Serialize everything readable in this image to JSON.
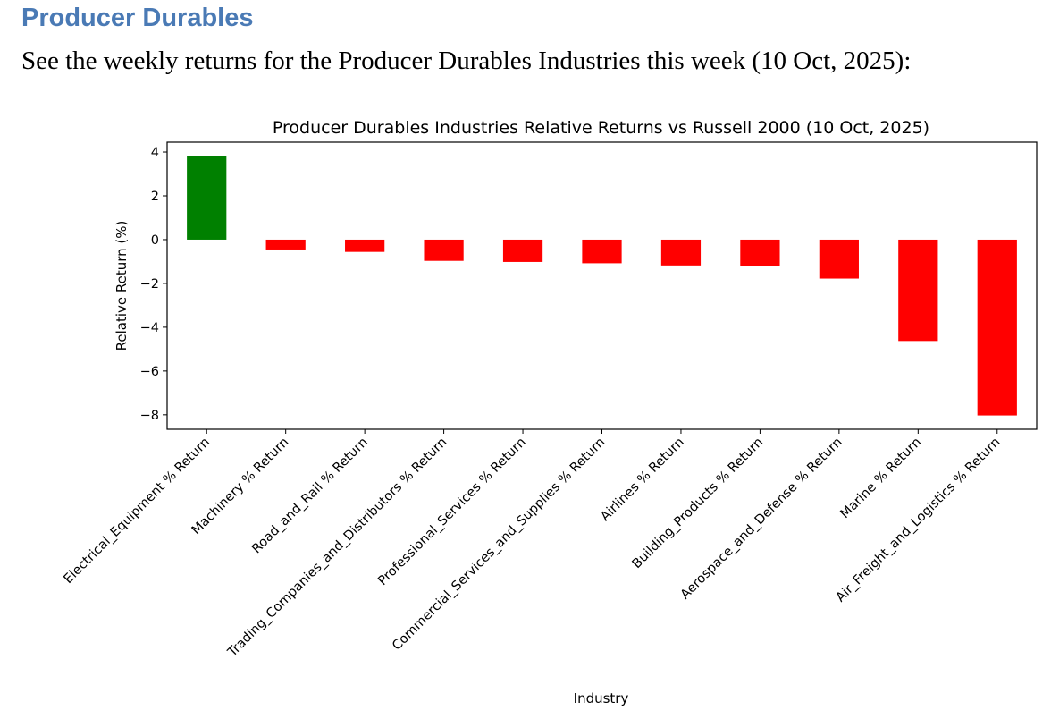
{
  "document": {
    "heading": "Producer Durables",
    "intro": "See the weekly returns for the Producer Durables Industries this week (10 Oct, 2025):"
  },
  "colors": {
    "heading": "#4a7ab5",
    "positive": "#008000",
    "negative": "#ff0000"
  },
  "chart_data": {
    "type": "bar",
    "title": "Producer Durables Industries Relative Returns vs Russell 2000 (10 Oct, 2025)",
    "xlabel": "Industry",
    "ylabel": "Relative Return (%)",
    "ylim": [
      -8.66,
      4.45
    ],
    "yticks": [
      4,
      2,
      0,
      -2,
      -4,
      -6,
      -8
    ],
    "ytick_labels": [
      "4",
      "2",
      "0",
      "−2",
      "−4",
      "−6",
      "−8"
    ],
    "grid": false,
    "categories": [
      "Electrical_Equipment % Return",
      "Machinery % Return",
      "Road_and_Rail % Return",
      "Trading_Companies_and_Distributors % Return",
      "Professional_Services % Return",
      "Commercial_Services_and_Supplies % Return",
      "Airlines % Return",
      "Building_Products % Return",
      "Aerospace_and_Defense % Return",
      "Marine % Return",
      "Air_Freight_and_Logistics % Return"
    ],
    "values": [
      3.82,
      -0.45,
      -0.56,
      -0.97,
      -1.02,
      -1.08,
      -1.18,
      -1.19,
      -1.78,
      -4.63,
      -8.03
    ]
  }
}
